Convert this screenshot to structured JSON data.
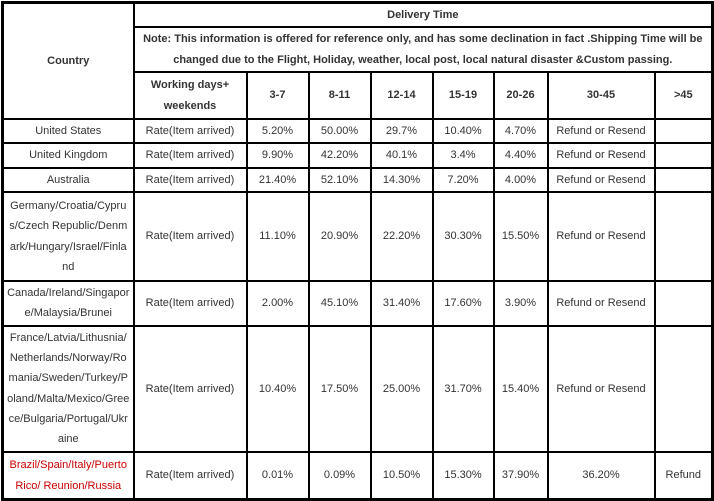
{
  "table": {
    "corner_header": "Country",
    "delivery_time_header": "Delivery Time",
    "note_lines": [
      "Note: This information is offered for reference only, and has some declination in fact .Shipping Time will be",
      "changed due to the Flight, Holiday, weather, local post, local natural disaster &Custom passing."
    ],
    "sub_headers": {
      "working_days": "Working days+ weekends",
      "ranges": [
        "3-7",
        "8-11",
        "12-14",
        "15-19",
        "20-26",
        "30-45",
        ">45"
      ]
    },
    "rows": [
      {
        "country": "United States",
        "rate_label": "Rate(Item arrived)",
        "values": [
          "5.20%",
          "50.00%",
          "29.7%",
          "10.40%",
          "4.70%",
          "Refund or Resend",
          ""
        ]
      },
      {
        "country": "United Kingdom",
        "rate_label": "Rate(Item arrived)",
        "values": [
          "9.90%",
          "42.20%",
          "40.1%",
          "3.4%",
          "4.40%",
          "Refund or Resend",
          ""
        ]
      },
      {
        "country": "Australia",
        "rate_label": "Rate(Item arrived)",
        "values": [
          "21.40%",
          "52.10%",
          "14.30%",
          "7.20%",
          "4.00%",
          "Refund or Resend",
          ""
        ]
      },
      {
        "country": "Germany/Croatia/Cyprus/Czech Republic/Denmark/Hungary/Israel/Finland",
        "rate_label": "Rate(Item arrived)",
        "values": [
          "11.10%",
          "20.90%",
          "22.20%",
          "30.30%",
          "15.50%",
          "Refund or Resend",
          ""
        ]
      },
      {
        "country": "Canada/Ireland/Singapore/Malaysia/Brunei",
        "rate_label": "Rate(Item arrived)",
        "values": [
          "2.00%",
          "45.10%",
          "31.40%",
          "17.60%",
          "3.90%",
          "Refund or Resend",
          ""
        ]
      },
      {
        "country": "France/Latvia/Lithusnia/Netherlands/Norway/Romania/Sweden/Turkey/Poland/Malta/Mexico/Greece/Bulgaria/Portugal/Ukraine",
        "rate_label": "Rate(Item arrived)",
        "values": [
          "10.40%",
          "17.50%",
          "25.00%",
          "31.70%",
          "15.40%",
          "Refund or Resend",
          ""
        ]
      },
      {
        "country": "Brazil/Spain/Italy/Puerto Rico/ Reunion/Russia",
        "rate_label": "Rate(Item arrived)",
        "values": [
          "0.01%",
          "0.09%",
          "10.50%",
          "15.30%",
          "37.90%",
          "36.20%",
          "Refund"
        ]
      }
    ]
  },
  "colors": {
    "note_text": "#0000CC",
    "highlight_country_text": "#CC0000",
    "border": "#000000",
    "background": "#FFFFFF"
  }
}
